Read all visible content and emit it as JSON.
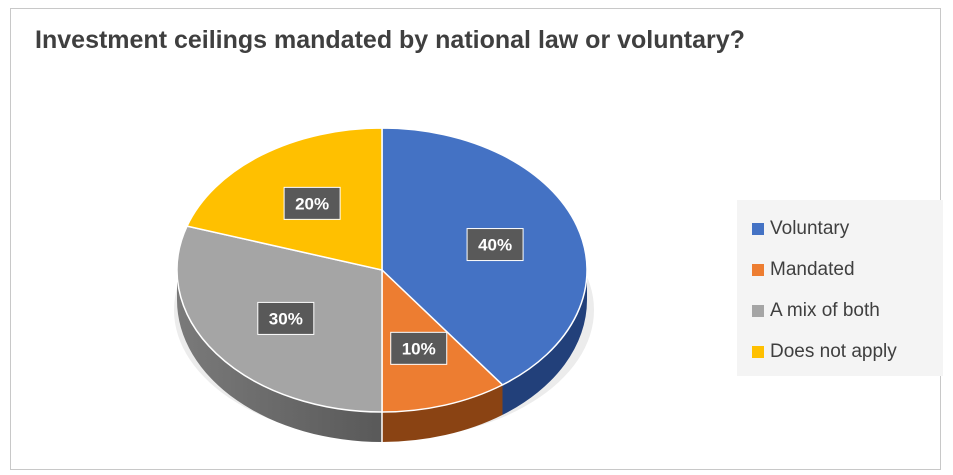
{
  "chart_data": {
    "type": "pie",
    "title": "Investment ceilings mandated by national law or voluntary?",
    "categories": [
      "Voluntary",
      "Mandated",
      "A mix of both",
      "Does not apply"
    ],
    "values": [
      40,
      10,
      30,
      20
    ],
    "labels": [
      "40%",
      "10%",
      "30%",
      "20%"
    ],
    "colors": [
      "#4472C4",
      "#ED7D31",
      "#A5A5A5",
      "#FFC000"
    ],
    "style": "3d",
    "legend_position": "right"
  }
}
